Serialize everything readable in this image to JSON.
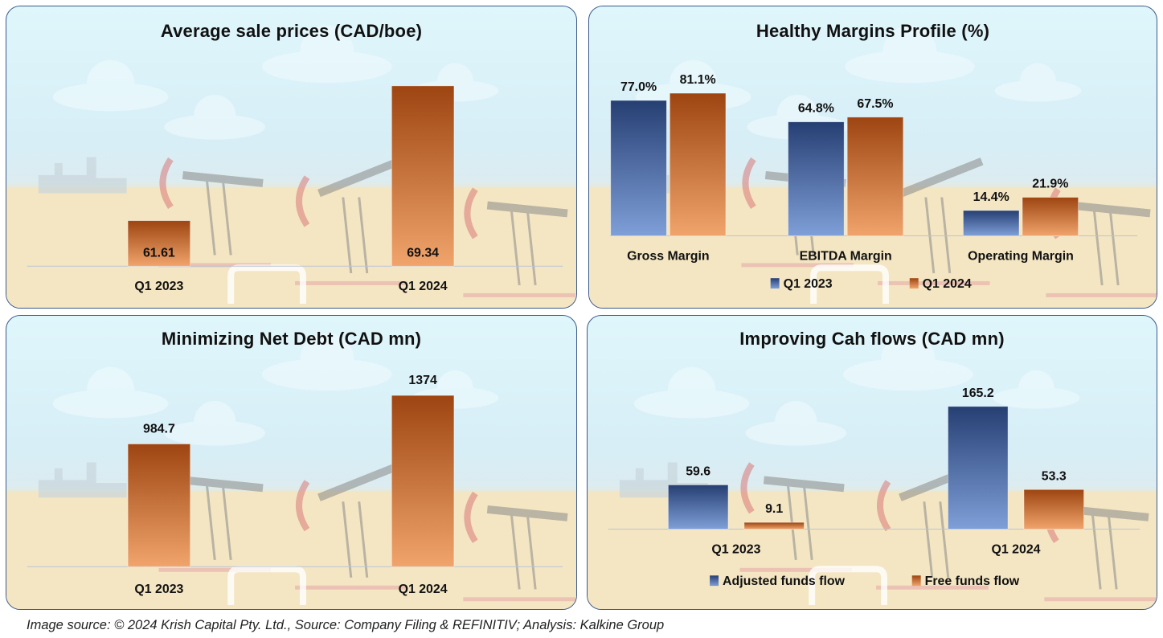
{
  "footer": "Image source: © 2024 Krish Capital Pty. Ltd., Source: Company Filing & REFINITIV; Analysis: Kalkine Group",
  "colors": {
    "orange_top": "#9e4512",
    "orange_bottom": "#f0a46b",
    "orange_mid": "#e57f36",
    "blue_top": "#263f73",
    "blue_bottom": "#7f9fd8",
    "blue_mid": "#4472c4",
    "title_text": "#111111",
    "panel_border": "#3b5a8c"
  },
  "chart_data": [
    {
      "id": "avg-sale-prices",
      "type": "bar",
      "title": "Average sale prices (CAD/boe)",
      "categories": [
        "Q1 2023",
        "Q1 2024"
      ],
      "values": [
        61.61,
        69.34
      ],
      "labels": [
        "61.61",
        "69.34"
      ],
      "label_position": "inside-bottom",
      "ylim": [
        59,
        70
      ],
      "xlabel": "",
      "ylabel": "",
      "legend": null,
      "grid": false
    },
    {
      "id": "margins-profile",
      "type": "bar",
      "title": "Healthy Margins Profile (%)",
      "categories": [
        "Gross Margin",
        "EBITDA Margin",
        "Operating Margin"
      ],
      "series": [
        {
          "name": "Q1 2023",
          "color": "blue",
          "values": [
            77.0,
            64.8,
            14.4
          ],
          "labels": [
            "77.0%",
            "64.8%",
            "14.4%"
          ]
        },
        {
          "name": "Q1 2024",
          "color": "orange",
          "values": [
            81.1,
            67.5,
            21.9
          ],
          "labels": [
            "81.1%",
            "67.5%",
            "21.9%"
          ]
        }
      ],
      "ylim": [
        0,
        85
      ],
      "xlabel": "",
      "ylabel": "",
      "legend": "bottom",
      "grid": false
    },
    {
      "id": "net-debt",
      "type": "bar",
      "title": "Minimizing Net Debt (CAD mn)",
      "categories": [
        "Q1 2023",
        "Q1 2024"
      ],
      "values": [
        984.7,
        1374
      ],
      "labels": [
        "984.7",
        "1374"
      ],
      "label_position": "above",
      "ylim": [
        0,
        1500
      ],
      "xlabel": "",
      "ylabel": "",
      "legend": null,
      "grid": false
    },
    {
      "id": "cash-flows",
      "type": "bar",
      "title": "Improving Cah flows (CAD mn)",
      "categories": [
        "Q1 2023",
        "Q1 2024"
      ],
      "series": [
        {
          "name": "Adjusted funds flow",
          "color": "blue",
          "values": [
            59.6,
            165.2
          ],
          "labels": [
            "59.6",
            "165.2"
          ]
        },
        {
          "name": "Free funds flow",
          "color": "orange",
          "values": [
            9.1,
            53.3
          ],
          "labels": [
            "9.1",
            "53.3"
          ]
        }
      ],
      "ylim": [
        0,
        185
      ],
      "xlabel": "",
      "ylabel": "",
      "legend": "bottom",
      "grid": false
    }
  ]
}
